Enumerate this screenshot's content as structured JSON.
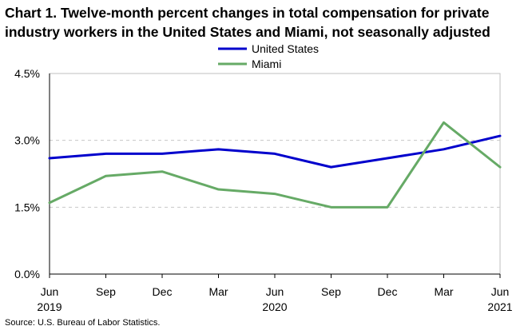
{
  "chart_data": {
    "type": "line",
    "title": "Chart 1. Twelve-month percent changes in total compensation for private industry workers in the United States and Miami, not seasonally adjusted",
    "xlabel": "",
    "ylabel": "",
    "ylim": [
      0,
      4.5
    ],
    "yticks": [
      "0.0%",
      "1.5%",
      "3.0%",
      "4.5%"
    ],
    "ytick_values": [
      0,
      1.5,
      3.0,
      4.5
    ],
    "categories": [
      "Jun\n2019",
      "Sep",
      "Dec",
      "Mar",
      "Jun\n2020",
      "Sep",
      "Dec",
      "Mar",
      "Jun\n2021"
    ],
    "xtick_labels": [
      {
        "month": "Jun",
        "year": "2019"
      },
      {
        "month": "Sep",
        "year": ""
      },
      {
        "month": "Dec",
        "year": ""
      },
      {
        "month": "Mar",
        "year": ""
      },
      {
        "month": "Jun",
        "year": "2020"
      },
      {
        "month": "Sep",
        "year": ""
      },
      {
        "month": "Dec",
        "year": ""
      },
      {
        "month": "Mar",
        "year": ""
      },
      {
        "month": "Jun",
        "year": "2021"
      }
    ],
    "series": [
      {
        "name": "United States",
        "color": "#0000cc",
        "values": [
          2.6,
          2.7,
          2.7,
          2.8,
          2.7,
          2.4,
          2.6,
          2.8,
          3.1
        ]
      },
      {
        "name": "Miami",
        "color": "#66aa66",
        "values": [
          1.6,
          2.2,
          2.3,
          1.9,
          1.8,
          1.5,
          1.5,
          3.4,
          2.4
        ]
      }
    ],
    "legend_position": "top-center",
    "grid": true
  },
  "source": "Source: U.S. Bureau of Labor Statistics."
}
